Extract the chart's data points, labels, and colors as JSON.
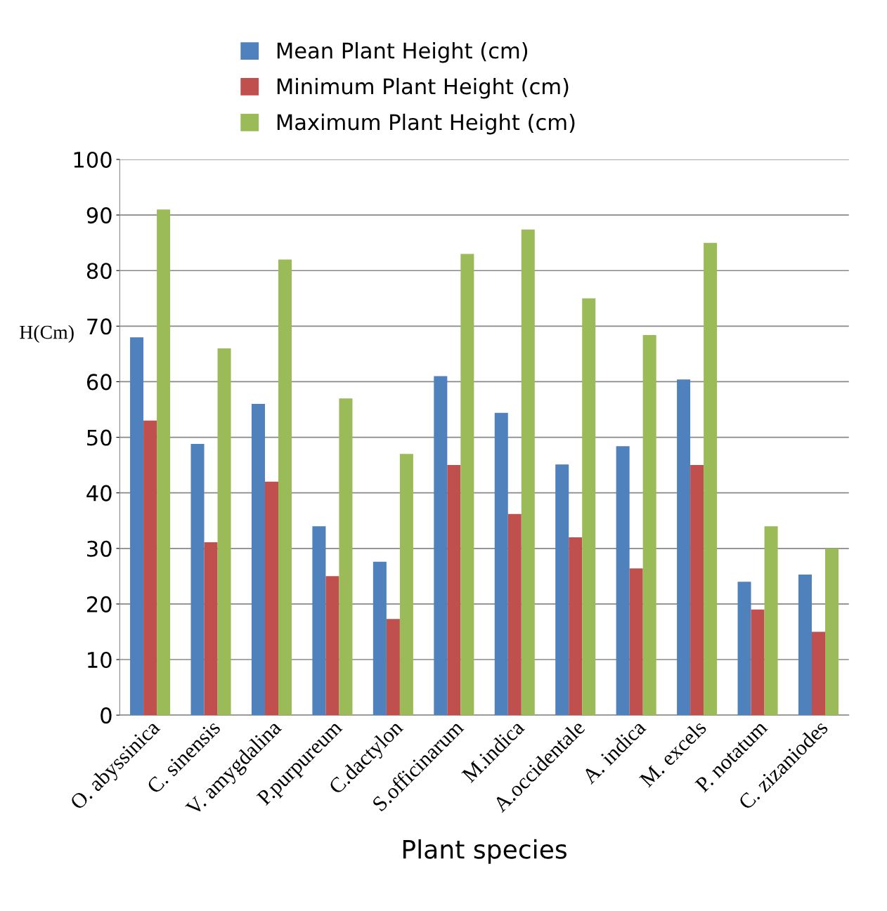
{
  "chart_data": {
    "type": "bar",
    "xlabel": "Plant species",
    "ylabel": "H(Cm)",
    "categories": [
      "O. abyssinica",
      "C. sinensis",
      "V. amygdalina",
      "P.purpureum",
      "C.dactylon",
      "S.officinarum",
      "M.indica",
      "A.occidentale",
      "A. indica",
      "M. excels",
      "P. notatum",
      "C. zizaniodes"
    ],
    "series": [
      {
        "name": "Mean Plant Height (cm)",
        "color": "#4f81bd",
        "values": [
          68,
          48.8,
          56,
          34,
          27.6,
          61,
          54.4,
          45.1,
          48.4,
          60.4,
          24,
          25.3
        ]
      },
      {
        "name": "Minimum Plant Height (cm)",
        "color": "#c0504d",
        "values": [
          53,
          31.1,
          42,
          25,
          17.3,
          45,
          36.2,
          32,
          26.4,
          45,
          19,
          15
        ]
      },
      {
        "name": "Maximum Plant Height (cm)",
        "color": "#9bbb59",
        "values": [
          91,
          66,
          82,
          57,
          47,
          83,
          87.4,
          75,
          68.4,
          85,
          34,
          30
        ]
      }
    ],
    "ylim": [
      0,
      100
    ],
    "yticks": [
      0,
      10,
      20,
      30,
      40,
      50,
      60,
      70,
      80,
      90,
      100
    ],
    "grid": "y",
    "legend": "top"
  }
}
